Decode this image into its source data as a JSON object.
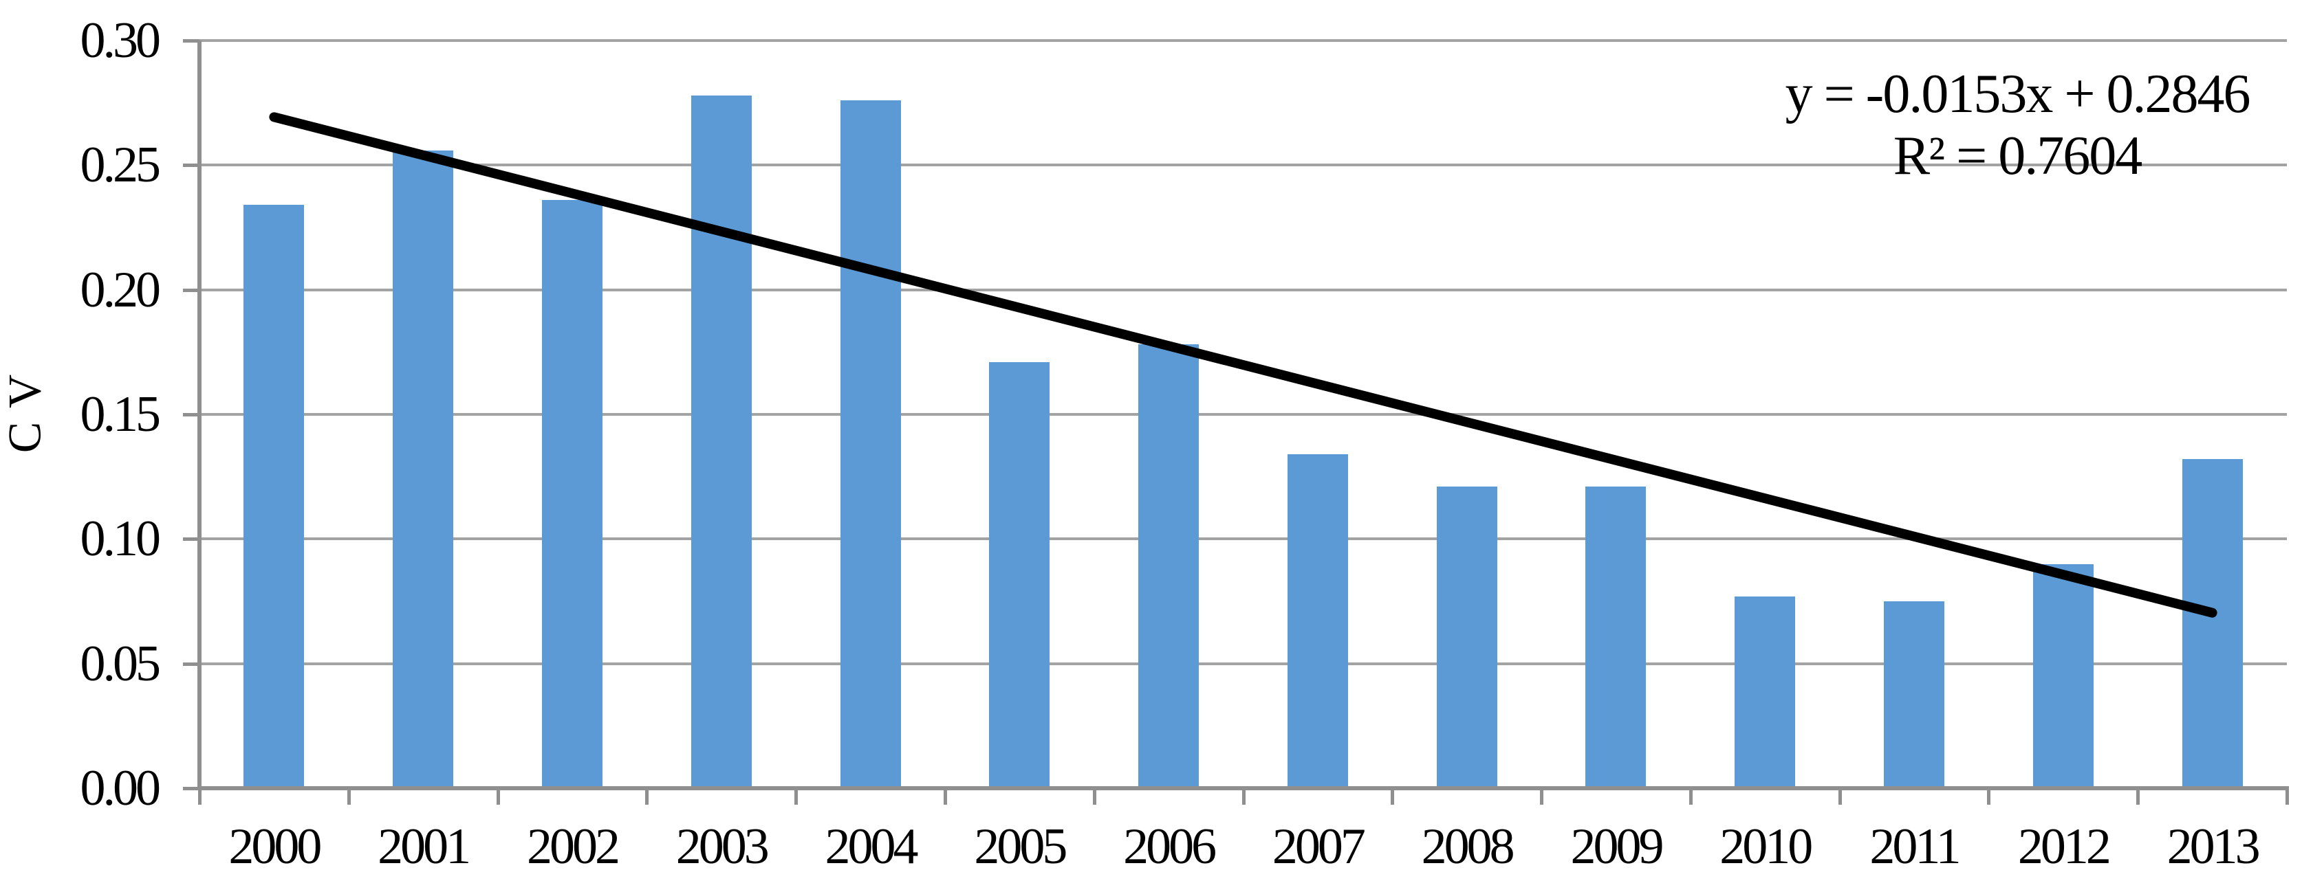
{
  "chart_data": {
    "type": "bar",
    "title": "",
    "categories": [
      "2000",
      "2001",
      "2002",
      "2003",
      "2004",
      "2005",
      "2006",
      "2007",
      "2008",
      "2009",
      "2010",
      "2011",
      "2012",
      "2013"
    ],
    "values": [
      0.234,
      0.256,
      0.236,
      0.278,
      0.276,
      0.171,
      0.178,
      0.134,
      0.121,
      0.121,
      0.077,
      0.075,
      0.09,
      0.132
    ],
    "series_name": "CV",
    "xlabel": "",
    "ylabel": "C V",
    "ylim": [
      0.0,
      0.3
    ],
    "ytick_labels": [
      "0.00",
      "0.05",
      "0.10",
      "0.15",
      "0.20",
      "0.25",
      "0.30"
    ],
    "grid": true,
    "legend": false,
    "bar_color": "#5B9AD5",
    "gridline_color": "#A3A3A3",
    "axis_color": "#8F8F8F",
    "trendline": {
      "type": "linear",
      "slope": -0.0153,
      "intercept": 0.2846,
      "equation": "y = -0.0153x + 0.2846",
      "r_squared": "R² = 0.7604",
      "color": "#000000"
    }
  }
}
